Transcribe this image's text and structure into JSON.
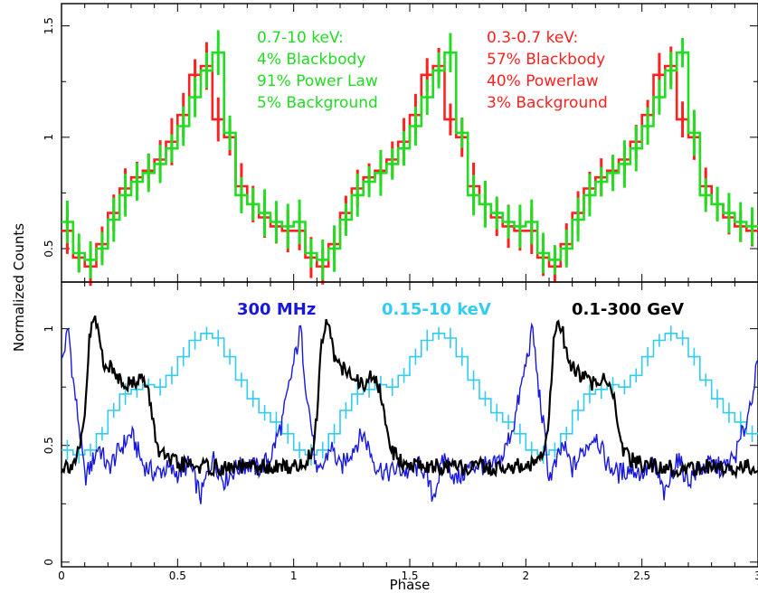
{
  "ylabel": "Normalized Counts",
  "chart_data": [
    {
      "type": "line",
      "panel": "top",
      "title": "",
      "xlabel": "Phase",
      "ylabel": "Normalized Counts",
      "xlim": [
        0,
        3
      ],
      "ylim": [
        0.35,
        1.6
      ],
      "y_ticks": [
        0.5,
        1,
        1.5
      ],
      "y_tick_labels": [
        "0.5",
        "1",
        "1.5"
      ],
      "legend_placement": "top",
      "series": [
        {
          "name": "0.3-0.7 keV",
          "color": "#ff2020",
          "style": "histogram-with-errorbars",
          "x": [
            0.0,
            0.05,
            0.1,
            0.15,
            0.2,
            0.25,
            0.3,
            0.35,
            0.4,
            0.45,
            0.5,
            0.55,
            0.6,
            0.65,
            0.7,
            0.75,
            0.8,
            0.85,
            0.9,
            0.95
          ],
          "values": [
            0.58,
            0.46,
            0.42,
            0.52,
            0.66,
            0.77,
            0.82,
            0.85,
            0.9,
            0.98,
            1.1,
            1.28,
            1.32,
            1.08,
            1.0,
            0.78,
            0.7,
            0.64,
            0.6,
            0.58
          ]
        },
        {
          "name": "0.7-10 keV",
          "color": "#22dd22",
          "style": "histogram-with-errorbars",
          "x": [
            0.0,
            0.05,
            0.1,
            0.15,
            0.2,
            0.25,
            0.3,
            0.35,
            0.4,
            0.45,
            0.5,
            0.55,
            0.6,
            0.65,
            0.7,
            0.75,
            0.8,
            0.85,
            0.9,
            0.95
          ],
          "values": [
            0.62,
            0.48,
            0.45,
            0.5,
            0.63,
            0.74,
            0.8,
            0.84,
            0.88,
            0.95,
            1.05,
            1.18,
            1.3,
            1.38,
            1.02,
            0.74,
            0.7,
            0.66,
            0.62,
            0.6
          ]
        }
      ],
      "annotations": [
        {
          "color": "#22dd22",
          "lines": [
            "0.7-10 keV:",
            "4% Blackbody",
            "91% Power Law",
            "5% Background"
          ]
        },
        {
          "color": "#ff2020",
          "lines": [
            "0.3-0.7 keV:",
            "57% Blackbody",
            "40% Powerlaw",
            "3% Background"
          ]
        }
      ]
    },
    {
      "type": "line",
      "panel": "bottom",
      "title": "",
      "xlabel": "Phase",
      "ylabel": "Normalized Counts",
      "xlim": [
        0,
        3
      ],
      "ylim": [
        -0.02,
        1.2
      ],
      "y_ticks": [
        0,
        0.5,
        1
      ],
      "y_tick_labels": [
        "0",
        "0.5",
        "1"
      ],
      "x_ticks": [
        0,
        0.5,
        1,
        1.5,
        2,
        2.5,
        3
      ],
      "x_tick_labels": [
        "0",
        "0.5",
        "1",
        "1.5",
        "2",
        "2.5",
        "3"
      ],
      "legend_placement": "top",
      "series": [
        {
          "name": "300 MHz",
          "color": "#1818dd",
          "style": "line",
          "x": [
            0.0,
            0.03,
            0.05,
            0.08,
            0.1,
            0.13,
            0.16,
            0.2,
            0.25,
            0.3,
            0.35,
            0.4,
            0.45,
            0.5,
            0.55,
            0.6,
            0.65,
            0.7,
            0.75,
            0.8,
            0.85,
            0.9,
            0.95,
            1.0
          ],
          "values": [
            0.85,
            1.0,
            0.78,
            0.55,
            0.36,
            0.42,
            0.5,
            0.4,
            0.48,
            0.55,
            0.42,
            0.38,
            0.4,
            0.38,
            0.42,
            0.28,
            0.45,
            0.35,
            0.4,
            0.42,
            0.4,
            0.45,
            0.6,
            0.85
          ]
        },
        {
          "name": "0.15-10 keV",
          "color": "#33ccee",
          "style": "histogram-with-errorbars",
          "x": [
            0.0,
            0.05,
            0.1,
            0.15,
            0.2,
            0.25,
            0.3,
            0.35,
            0.4,
            0.45,
            0.5,
            0.55,
            0.6,
            0.65,
            0.7,
            0.75,
            0.8,
            0.85,
            0.9,
            0.95
          ],
          "values": [
            0.48,
            0.46,
            0.48,
            0.55,
            0.65,
            0.72,
            0.74,
            0.76,
            0.75,
            0.8,
            0.88,
            0.95,
            0.98,
            0.96,
            0.88,
            0.78,
            0.7,
            0.64,
            0.6,
            0.55
          ]
        },
        {
          "name": "0.1-300 GeV",
          "color": "#000000",
          "style": "line",
          "x": [
            0.0,
            0.05,
            0.08,
            0.1,
            0.12,
            0.14,
            0.16,
            0.18,
            0.22,
            0.26,
            0.3,
            0.34,
            0.36,
            0.38,
            0.4,
            0.42,
            0.45,
            0.5,
            0.6,
            0.7,
            0.8,
            0.9,
            0.96,
            1.0
          ],
          "values": [
            0.41,
            0.42,
            0.48,
            0.62,
            0.95,
            1.05,
            0.98,
            0.86,
            0.82,
            0.78,
            0.76,
            0.8,
            0.76,
            0.7,
            0.56,
            0.48,
            0.44,
            0.42,
            0.41,
            0.4,
            0.41,
            0.4,
            0.41,
            0.41
          ]
        }
      ]
    }
  ]
}
